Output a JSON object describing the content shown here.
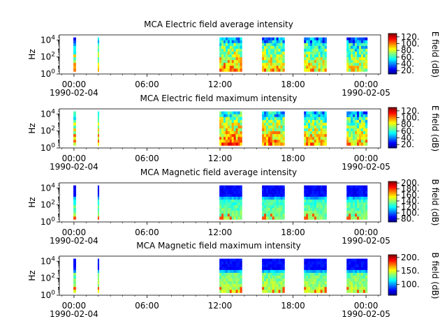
{
  "chart_data": [
    {
      "type": "heatmap",
      "title": "MCA  Electric field average intensity",
      "ylabel": "Hz",
      "yticks": [
        "10^0",
        "10^2",
        "10^4"
      ],
      "ylim_log10": [
        0,
        4.6
      ],
      "xticks": [
        "00:00",
        "06:00",
        "12:00",
        "18:00",
        "00:00"
      ],
      "xtick_hours": [
        0,
        6,
        12,
        18,
        24
      ],
      "date_labels": [
        {
          "hour": 0,
          "text": "1990-02-04"
        },
        {
          "hour": 24,
          "text": "1990-02-05"
        }
      ],
      "xlim_hours": [
        -1.2,
        25.2
      ],
      "colorbar_label": "E field (dB)",
      "colorbar_ticks": [
        20,
        40,
        60,
        80,
        100,
        120
      ],
      "colorbar_range": [
        10,
        130
      ],
      "cmap": "jet",
      "level": 0.55,
      "blocks": [
        [
          -0.05,
          0.15,
          0.1
        ],
        [
          1.95,
          2.05,
          0.2
        ],
        [
          11.95,
          13.8,
          0.4
        ],
        [
          15.45,
          17.3,
          0.2
        ],
        [
          18.9,
          20.75,
          0.0
        ],
        [
          22.4,
          24.1,
          -0.2
        ]
      ]
    },
    {
      "type": "heatmap",
      "title": "MCA  Electric field maximum intensity",
      "ylabel": "Hz",
      "yticks": [
        "10^0",
        "10^2",
        "10^4"
      ],
      "ylim_log10": [
        0,
        4.6
      ],
      "xticks": [
        "00:00",
        "06:00",
        "12:00",
        "18:00",
        "00:00"
      ],
      "xtick_hours": [
        0,
        6,
        12,
        18,
        24
      ],
      "date_labels": [
        {
          "hour": 0,
          "text": "1990-02-04"
        },
        {
          "hour": 24,
          "text": "1990-02-05"
        }
      ],
      "xlim_hours": [
        -1.2,
        25.2
      ],
      "colorbar_label": "E field (dB)",
      "colorbar_ticks": [
        20,
        40,
        60,
        80,
        100,
        120
      ],
      "colorbar_range": [
        10,
        130
      ],
      "cmap": "jet",
      "level": 0.6,
      "blocks": [
        [
          -0.05,
          0.15,
          0.1
        ],
        [
          1.95,
          2.05,
          0.2
        ],
        [
          11.95,
          13.8,
          0.4
        ],
        [
          15.45,
          17.3,
          0.2
        ],
        [
          18.9,
          20.75,
          0.0
        ],
        [
          22.4,
          24.1,
          -0.2
        ]
      ]
    },
    {
      "type": "heatmap",
      "title": "MCA  Magnetic field average intensity",
      "ylabel": "Hz",
      "yticks": [
        "10^0",
        "10^2",
        "10^4"
      ],
      "ylim_log10": [
        0,
        4.6
      ],
      "xticks": [
        "00:00",
        "06:00",
        "12:00",
        "18:00",
        "00:00"
      ],
      "xtick_hours": [
        0,
        6,
        12,
        18,
        24
      ],
      "date_labels": [
        {
          "hour": 0,
          "text": "1990-02-04"
        },
        {
          "hour": 24,
          "text": "1990-02-05"
        }
      ],
      "xlim_hours": [
        -1.2,
        25.2
      ],
      "colorbar_label": "B field (dB)",
      "colorbar_ticks": [
        80,
        100,
        120,
        140,
        160,
        180,
        200
      ],
      "colorbar_range": [
        70,
        205
      ],
      "cmap": "jet",
      "level": 0.4,
      "blocks": [
        [
          -0.05,
          0.15,
          0.0
        ],
        [
          1.95,
          2.05,
          0.0
        ],
        [
          11.95,
          13.8,
          0.0
        ],
        [
          15.45,
          17.3,
          0.0
        ],
        [
          18.9,
          20.75,
          0.0
        ],
        [
          22.4,
          24.1,
          0.0
        ]
      ]
    },
    {
      "type": "heatmap",
      "title": "MCA  Magnetic field maximum intensity",
      "ylabel": "Hz",
      "yticks": [
        "10^0",
        "10^2",
        "10^4"
      ],
      "ylim_log10": [
        0,
        4.6
      ],
      "xticks": [
        "00:00",
        "06:00",
        "12:00",
        "18:00",
        "00:00"
      ],
      "xtick_hours": [
        0,
        6,
        12,
        18,
        24
      ],
      "date_labels": [
        {
          "hour": 0,
          "text": "1990-02-04"
        },
        {
          "hour": 24,
          "text": "1990-02-05"
        }
      ],
      "xlim_hours": [
        -1.2,
        25.2
      ],
      "colorbar_label": "B field (dB)",
      "colorbar_ticks": [
        100,
        150,
        200
      ],
      "colorbar_range": [
        60,
        210
      ],
      "cmap": "jet",
      "level": 0.45,
      "blocks": [
        [
          -0.05,
          0.15,
          0.1
        ],
        [
          1.95,
          2.05,
          0.1
        ],
        [
          11.95,
          13.8,
          0.2
        ],
        [
          15.45,
          17.3,
          0.1
        ],
        [
          18.9,
          20.75,
          0.0
        ],
        [
          22.4,
          24.1,
          -0.1
        ]
      ]
    }
  ]
}
